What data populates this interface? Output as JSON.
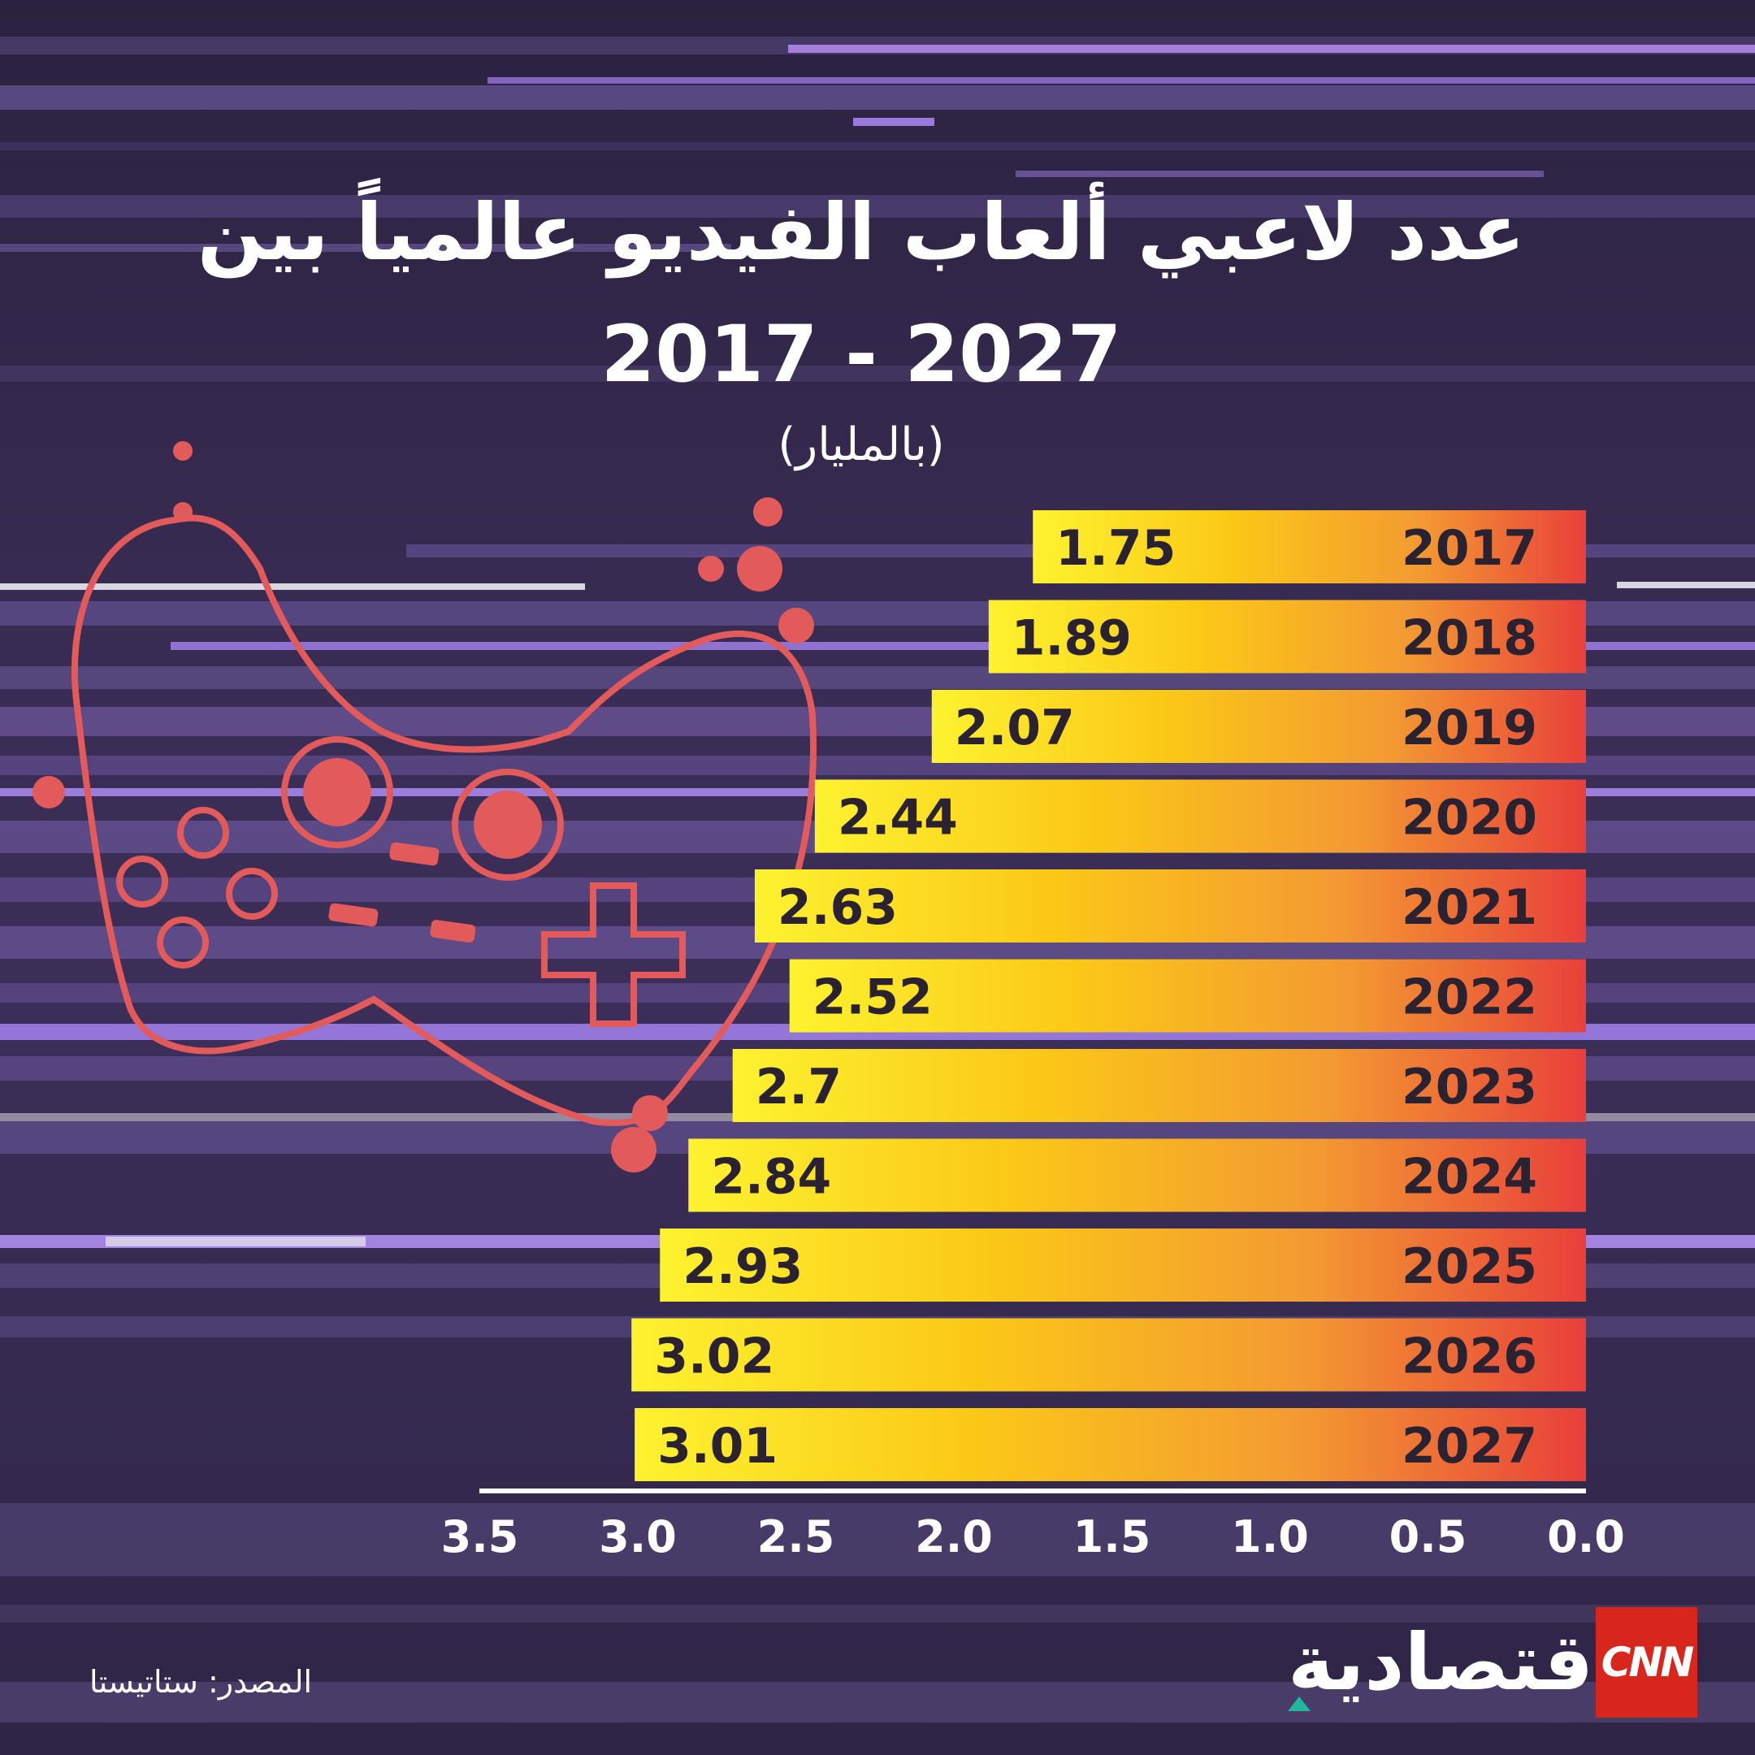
{
  "header": {
    "title_line1": "عدد لاعبي ألعاب الفيديو عالمياً بين",
    "title_line2": "2017 - 2027",
    "unit_note": "(بالمليار)"
  },
  "footer": {
    "source": "المصدر: ستاتيستا",
    "brand_name": "الاقتصادية",
    "logo_text": "CNN"
  },
  "chart_data": {
    "type": "bar",
    "orientation": "horizontal",
    "x_direction": "right-to-left",
    "categories": [
      "2017",
      "2018",
      "2019",
      "2020",
      "2021",
      "2022",
      "2023",
      "2024",
      "2025",
      "2026",
      "2027"
    ],
    "values": [
      1.75,
      1.89,
      2.07,
      2.44,
      2.63,
      2.52,
      2.7,
      2.84,
      2.93,
      3.02,
      3.01
    ],
    "value_labels": [
      "1.75",
      "1.89",
      "2.07",
      "2.44",
      "2.63",
      "2.52",
      "2.7",
      "2.84",
      "2.93",
      "3.02",
      "3.01"
    ],
    "xlim": [
      0,
      3.5
    ],
    "x_ticks": [
      "0.0",
      "0.5",
      "1.0",
      "1.5",
      "2.0",
      "2.5",
      "3.0",
      "3.5"
    ],
    "grid": false,
    "bar_gradient": [
      "#fde81c",
      "#f9b62a",
      "#ec4a34"
    ]
  }
}
